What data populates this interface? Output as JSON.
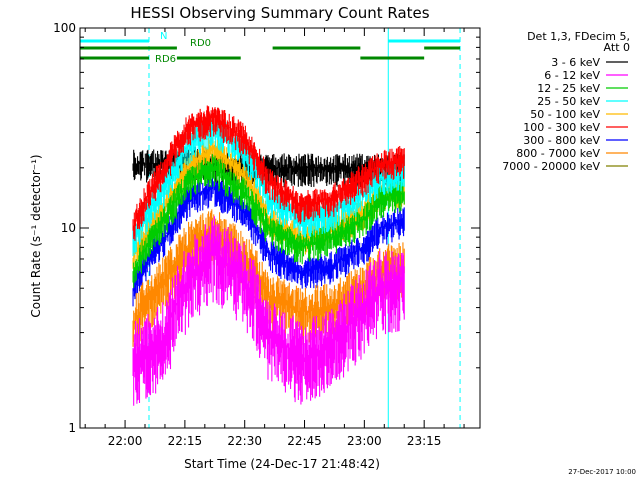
{
  "chart_data": {
    "type": "line",
    "title": "HESSI Observing Summary Count Rates",
    "xlabel": "Start Time (24-Dec-17 21:48:42)",
    "ylabel": "Count Rate (s⁻¹ detector⁻¹)",
    "yscale": "log",
    "ylim": [
      1,
      100
    ],
    "xlim": [
      "21:48:42",
      "23:29:00"
    ],
    "xticks": [
      "22:00",
      "22:15",
      "22:30",
      "22:45",
      "23:00",
      "23:15"
    ],
    "yticks": [
      "1",
      "10",
      "100"
    ],
    "legend_title": [
      "Det 1,3, FDecim 5,",
      "Att 0"
    ],
    "legend_position": "right",
    "footer": "27-Dec-2017 10:00",
    "data_span": [
      "22:02",
      "23:10"
    ],
    "series": [
      {
        "name": "3 - 6 keV",
        "color": "#000000",
        "times": [
          "22:02",
          "22:10",
          "22:16",
          "22:22",
          "22:30",
          "22:36",
          "22:44",
          "22:52",
          "23:00",
          "23:04",
          "23:10"
        ],
        "values": [
          21,
          21,
          22,
          21,
          20,
          20,
          20,
          20,
          20,
          20,
          20
        ]
      },
      {
        "name": "6 - 12 keV",
        "color": "#ff00ff",
        "times": [
          "22:02",
          "22:10",
          "22:16",
          "22:22",
          "22:30",
          "22:36",
          "22:44",
          "22:52",
          "23:00",
          "23:04",
          "23:10"
        ],
        "values": [
          2.2,
          2.8,
          5.5,
          7.5,
          5.5,
          3.0,
          2.2,
          2.6,
          4.0,
          5.0,
          5.5
        ]
      },
      {
        "name": "12 - 25 keV",
        "color": "#00cc00",
        "times": [
          "22:02",
          "22:10",
          "22:16",
          "22:22",
          "22:30",
          "22:36",
          "22:44",
          "22:52",
          "23:00",
          "23:04",
          "23:10"
        ],
        "values": [
          6.0,
          11.0,
          17.0,
          20.0,
          15.0,
          10.0,
          8.0,
          9.0,
          11.0,
          14.0,
          15.0
        ]
      },
      {
        "name": "25 - 50 keV",
        "color": "#00ffff",
        "times": [
          "22:02",
          "22:10",
          "22:16",
          "22:22",
          "22:30",
          "22:36",
          "22:44",
          "22:52",
          "23:00",
          "23:04",
          "23:10"
        ],
        "values": [
          8.5,
          16.0,
          26.0,
          32.0,
          24.0,
          14.0,
          11.0,
          12.0,
          15.0,
          18.0,
          19.0
        ]
      },
      {
        "name": "50 - 100 keV",
        "color": "#ffbb00",
        "times": [
          "22:02",
          "22:10",
          "22:16",
          "22:22",
          "22:30",
          "22:36",
          "22:44",
          "22:52",
          "23:00",
          "23:04",
          "23:10"
        ],
        "values": [
          7.0,
          13.0,
          20.0,
          25.0,
          18.0,
          11.0,
          9.0,
          10.0,
          12.0,
          15.0,
          16.0
        ]
      },
      {
        "name": "100 - 300 keV",
        "color": "#ff0000",
        "times": [
          "22:02",
          "22:10",
          "22:16",
          "22:22",
          "22:30",
          "22:36",
          "22:44",
          "22:52",
          "23:00",
          "23:04",
          "23:10"
        ],
        "values": [
          10.0,
          20.0,
          32.0,
          36.0,
          28.0,
          17.0,
          13.0,
          14.0,
          18.0,
          21.0,
          22.0
        ]
      },
      {
        "name": "300 - 800 keV",
        "color": "#0000ff",
        "times": [
          "22:02",
          "22:10",
          "22:16",
          "22:22",
          "22:30",
          "22:36",
          "22:44",
          "22:52",
          "23:00",
          "23:04",
          "23:10"
        ],
        "values": [
          5.0,
          9.0,
          14.0,
          16.0,
          12.0,
          7.5,
          6.0,
          6.5,
          8.0,
          10.0,
          11.0
        ]
      },
      {
        "name": "800 - 7000 keV",
        "color": "#ff8800",
        "times": [
          "22:02",
          "22:10",
          "22:16",
          "22:22",
          "22:30",
          "22:36",
          "22:44",
          "22:52",
          "23:00",
          "23:04",
          "23:10"
        ],
        "values": [
          3.3,
          5.5,
          8.0,
          9.5,
          7.0,
          4.5,
          3.8,
          4.0,
          5.0,
          6.0,
          6.5
        ]
      },
      {
        "name": "7000 - 20000 keV",
        "color": "#808000",
        "times": [
          "22:02",
          "22:10",
          "22:16",
          "22:22",
          "22:30",
          "22:36",
          "22:44",
          "22:52",
          "23:00",
          "23:04",
          "23:10"
        ],
        "values": [
          null,
          null,
          null,
          null,
          null,
          null,
          null,
          null,
          null,
          null,
          null
        ]
      }
    ],
    "vertical_markers": [
      {
        "time": "21:48:42",
        "color": "#00ffff",
        "style": "solid"
      },
      {
        "time": "22:06",
        "color": "#00ffff",
        "style": "dashed"
      },
      {
        "time": "23:06",
        "color": "#00ffff",
        "style": "solid"
      },
      {
        "time": "23:24",
        "color": "#00ffff",
        "style": "dashed"
      }
    ],
    "flag_bars": [
      {
        "label": "N",
        "color": "#00ffff",
        "segments": [
          [
            "21:48:42",
            "22:06"
          ],
          [
            "23:06",
            "23:24"
          ]
        ]
      },
      {
        "label": "RD0",
        "color": "#008800",
        "segments": [
          [
            "21:48:42",
            "22:13"
          ],
          [
            "22:37",
            "22:59"
          ],
          [
            "23:15",
            "23:24"
          ]
        ]
      },
      {
        "label": "RD6",
        "color": "#008800",
        "segments": [
          [
            "21:48:42",
            "22:06"
          ],
          [
            "22:13",
            "22:29"
          ],
          [
            "22:59",
            "23:15"
          ]
        ]
      }
    ]
  }
}
